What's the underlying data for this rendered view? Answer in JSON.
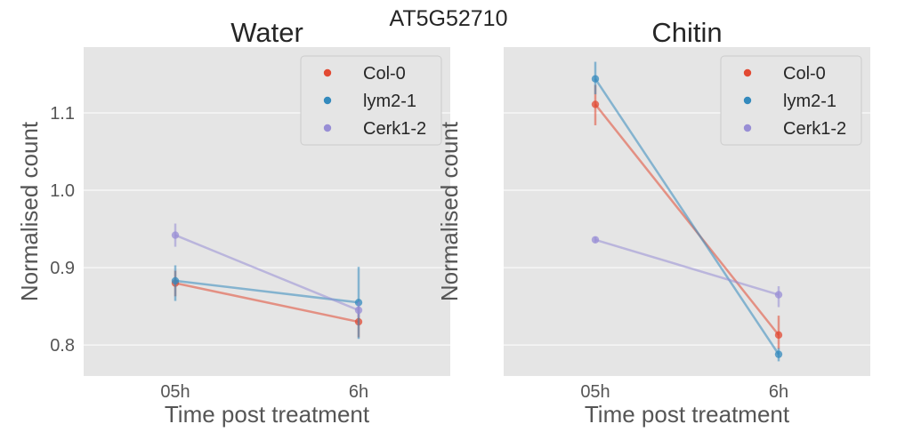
{
  "figure": {
    "suptitle": "AT5G52710"
  },
  "colors": {
    "panel_bg": "#e5e5e5",
    "grid": "#ffffff",
    "text": "#555555",
    "Col-0": "#e24a33",
    "lym2-1": "#348abd",
    "Cerk1-2": "#988ed5"
  },
  "chart_data": [
    {
      "type": "line",
      "title": "Water",
      "xlabel": "Time post treatment",
      "ylabel": "Normalised count",
      "categories": [
        "05h",
        "6h"
      ],
      "ylim": [
        0.76,
        1.185
      ],
      "yticks": [
        0.8,
        0.9,
        1.0,
        1.1
      ],
      "ytick_labels": [
        "0.8",
        "0.9",
        "1.0",
        "1.1"
      ],
      "grid": true,
      "legend_position": "top-right",
      "series": [
        {
          "name": "Col-0",
          "values": [
            0.88,
            0.83
          ],
          "error_low": [
            0.863,
            0.81
          ],
          "error_high": [
            0.896,
            0.849
          ]
        },
        {
          "name": "lym2-1",
          "values": [
            0.883,
            0.855
          ],
          "error_low": [
            0.857,
            0.808
          ],
          "error_high": [
            0.903,
            0.901
          ]
        },
        {
          "name": "Cerk1-2",
          "values": [
            0.942,
            0.845
          ],
          "error_low": [
            0.927,
            0.836
          ],
          "error_high": [
            0.957,
            0.856
          ]
        }
      ]
    },
    {
      "type": "line",
      "title": "Chitin",
      "xlabel": "Time post treatment",
      "ylabel": "Normalised count",
      "categories": [
        "05h",
        "6h"
      ],
      "ylim": [
        0.76,
        1.185
      ],
      "yticks": [
        0.8,
        0.9,
        1.0,
        1.1
      ],
      "ytick_labels": [],
      "grid": true,
      "legend_position": "top-right",
      "series": [
        {
          "name": "Col-0",
          "values": [
            1.111,
            0.813
          ],
          "error_low": [
            1.084,
            0.795
          ],
          "error_high": [
            1.136,
            0.838
          ]
        },
        {
          "name": "lym2-1",
          "values": [
            1.144,
            0.788
          ],
          "error_low": [
            1.124,
            0.779
          ],
          "error_high": [
            1.166,
            0.796
          ]
        },
        {
          "name": "Cerk1-2",
          "values": [
            0.936,
            0.865
          ],
          "error_low": [
            0.932,
            0.849
          ],
          "error_high": [
            0.94,
            0.876
          ]
        }
      ]
    }
  ]
}
